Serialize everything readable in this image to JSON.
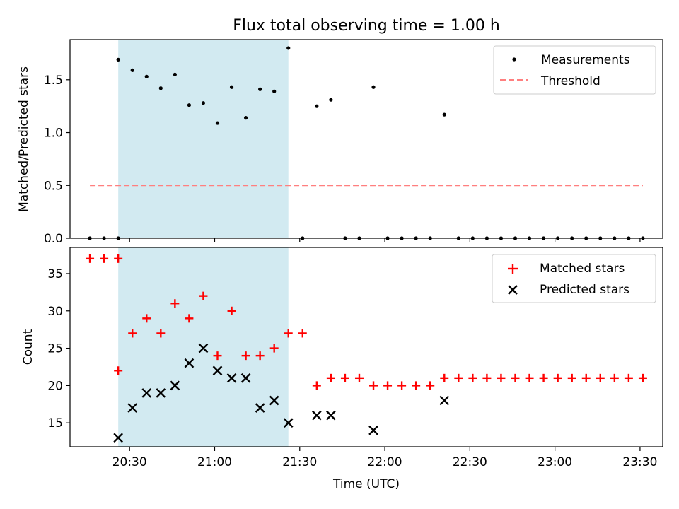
{
  "chart_data": [
    {
      "type": "scatter",
      "title": "Flux total observing time = 1.00 h",
      "xlabel": "",
      "ylabel": "Matched/Predicted stars",
      "x_unit": "time (UTC)",
      "xlim": [
        "20:09",
        "23:38"
      ],
      "ylim": [
        0,
        1.88
      ],
      "yticks": [
        0.0,
        0.5,
        1.0,
        1.5
      ],
      "ytick_labels": [
        "0.0",
        "0.5",
        "1.0",
        "1.5"
      ],
      "highlight_span": [
        "20:26",
        "21:26"
      ],
      "highlight_color": "#add8e6",
      "legend_position": "top-right",
      "series": [
        {
          "name": "Measurements",
          "kind": "points",
          "color": "#000000",
          "x": [
            "20:16",
            "20:21",
            "20:26",
            "20:26",
            "20:31",
            "20:36",
            "20:41",
            "20:46",
            "20:51",
            "20:56",
            "21:01",
            "21:06",
            "21:11",
            "21:16",
            "21:21",
            "21:26",
            "21:31",
            "21:36",
            "21:41",
            "21:46",
            "21:51",
            "21:56",
            "22:01",
            "22:06",
            "22:11",
            "22:16",
            "22:21",
            "22:26",
            "22:31",
            "22:36",
            "22:41",
            "22:46",
            "22:51",
            "22:56",
            "23:01",
            "23:06",
            "23:11",
            "23:16",
            "23:21",
            "23:26",
            "23:31"
          ],
          "y": [
            0,
            0,
            0,
            1.69,
            1.59,
            1.53,
            1.42,
            1.55,
            1.26,
            1.28,
            1.09,
            1.43,
            1.14,
            1.41,
            1.39,
            1.8,
            0,
            1.25,
            1.31,
            0,
            0,
            1.43,
            0,
            0,
            0,
            0,
            1.17,
            0,
            0,
            0,
            0,
            0,
            0,
            0,
            0,
            0,
            0,
            0,
            0,
            0,
            0
          ]
        },
        {
          "name": "Threshold",
          "kind": "dashed-line",
          "color": "#ff7f7f",
          "x": [
            "20:16",
            "23:31"
          ],
          "y": [
            0.5,
            0.5
          ]
        }
      ]
    },
    {
      "type": "scatter",
      "title": "",
      "xlabel": "Time (UTC)",
      "ylabel": "Count",
      "xlim": [
        "20:09",
        "23:38"
      ],
      "ylim": [
        11.8,
        38.5
      ],
      "yticks": [
        15,
        20,
        25,
        30,
        35
      ],
      "ytick_labels": [
        "15",
        "20",
        "25",
        "30",
        "35"
      ],
      "xticks": [
        "20:30",
        "21:00",
        "21:30",
        "22:00",
        "22:30",
        "23:00",
        "23:30"
      ],
      "highlight_span": [
        "20:26",
        "21:26"
      ],
      "highlight_color": "#add8e6",
      "legend_position": "top-right",
      "series": [
        {
          "name": "Matched stars",
          "marker": "plus",
          "color": "#ff0000",
          "x": [
            "20:16",
            "20:21",
            "20:26",
            "20:26",
            "20:31",
            "20:36",
            "20:41",
            "20:46",
            "20:51",
            "20:56",
            "21:01",
            "21:06",
            "21:11",
            "21:16",
            "21:21",
            "21:26",
            "21:31",
            "21:36",
            "21:41",
            "21:46",
            "21:51",
            "21:56",
            "22:01",
            "22:06",
            "22:11",
            "22:16",
            "22:21",
            "22:26",
            "22:31",
            "22:36",
            "22:41",
            "22:46",
            "22:51",
            "22:56",
            "23:01",
            "23:06",
            "23:11",
            "23:16",
            "23:21",
            "23:26",
            "23:31"
          ],
          "y": [
            37,
            37,
            37,
            22,
            27,
            29,
            27,
            31,
            29,
            32,
            24,
            30,
            24,
            24,
            25,
            27,
            27,
            20,
            21,
            21,
            21,
            20,
            20,
            20,
            20,
            20,
            21,
            21,
            21,
            21,
            21,
            21,
            21,
            21,
            21,
            21,
            21,
            21,
            21,
            21,
            21
          ]
        },
        {
          "name": "Predicted stars",
          "marker": "x",
          "color": "#000000",
          "x": [
            "20:26",
            "20:31",
            "20:36",
            "20:41",
            "20:46",
            "20:51",
            "20:56",
            "21:01",
            "21:06",
            "21:11",
            "21:16",
            "21:21",
            "21:26",
            "21:36",
            "21:41",
            "21:56",
            "22:21"
          ],
          "y": [
            13,
            17,
            19,
            19,
            20,
            23,
            25,
            22,
            21,
            21,
            17,
            18,
            15,
            16,
            16,
            14,
            18
          ]
        }
      ]
    }
  ]
}
